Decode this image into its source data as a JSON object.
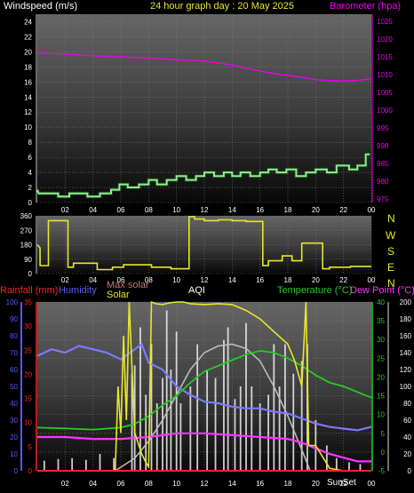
{
  "header": {
    "left_title": "Windspeed (m/s)",
    "center_title": "24 hour graph day : 20 May 2025",
    "right_title": "Barometer (hpa)"
  },
  "colors": {
    "background": "#000000",
    "windspeed": "#90ee90",
    "barometer": "#ee00ee",
    "wind_direction": "#e6e62e",
    "rainfall": "#ff2020",
    "humidity": "#5a5aff",
    "max_solar": "#c87878",
    "solar": "#e6e62e",
    "aqi": "#ffffff",
    "temperature": "#22cc22",
    "dew_point": "#ff33ff"
  },
  "compass": [
    "N",
    "W",
    "S",
    "E",
    "N"
  ],
  "chart_data": [
    {
      "type": "line",
      "id": "wind-baro",
      "x_ticks": [
        "02",
        "04",
        "06",
        "08",
        "10",
        "12",
        "14",
        "16",
        "18",
        "20",
        "22",
        "00"
      ],
      "left_axis": {
        "label": "Windspeed (m/s)",
        "ticks": [
          0,
          2,
          4,
          6,
          8,
          10,
          12,
          14,
          16,
          18,
          20,
          22,
          24
        ],
        "range": [
          0,
          25
        ]
      },
      "right_axis": {
        "label": "Barometer (hpa)",
        "ticks": [
          975,
          980,
          985,
          990,
          995,
          1000,
          1005,
          1010,
          1015,
          1020,
          1025
        ],
        "range": [
          974,
          1027
        ]
      },
      "grid": true,
      "series": [
        {
          "name": "Windspeed",
          "x": [
            0,
            0.1,
            0.8,
            1.5,
            1.5,
            2.3,
            2.3,
            2.9,
            2.9,
            3.6,
            3.6,
            4.5,
            4.5,
            5.3,
            5.3,
            5.9,
            5.9,
            6.5,
            6.5,
            7.3,
            7.3,
            8.0,
            8.0,
            8.6,
            8.6,
            9.3,
            9.3,
            10.0,
            10.0,
            10.7,
            10.7,
            11.4,
            11.4,
            12.0,
            12.0,
            12.7,
            12.7,
            13.4,
            13.4,
            14.0,
            14.0,
            14.6,
            14.6,
            15.3,
            15.3,
            16.0,
            16.0,
            16.6,
            16.6,
            17.2,
            17.2,
            17.9,
            17.9,
            18.6,
            18.6,
            19.3,
            19.3,
            20.0,
            20.0,
            20.8,
            20.8,
            21.5,
            21.5,
            22.4,
            22.4,
            23.0,
            23.0,
            23.6,
            23.6,
            23.9
          ],
          "y": [
            1.7,
            1.2,
            1.2,
            1.2,
            0.8,
            0.8,
            1.2,
            1.2,
            1.2,
            1.2,
            0.8,
            0.8,
            1.2,
            1.2,
            1.7,
            1.7,
            2.4,
            2.4,
            2.0,
            2.0,
            2.4,
            2.4,
            3.0,
            3.0,
            2.4,
            2.4,
            3.0,
            3.0,
            3.5,
            3.5,
            3.0,
            3.0,
            3.5,
            3.5,
            4.0,
            4.0,
            3.5,
            3.5,
            4.0,
            4.0,
            3.5,
            3.5,
            4.0,
            4.0,
            3.5,
            3.5,
            4.0,
            4.0,
            4.4,
            4.4,
            4.0,
            4.0,
            4.4,
            4.4,
            3.5,
            3.5,
            4.0,
            4.0,
            4.4,
            4.4,
            4.0,
            4.0,
            4.9,
            4.9,
            4.4,
            4.4,
            4.9,
            4.9,
            6.4,
            6.4
          ]
        },
        {
          "name": "Barometer",
          "x": [
            0,
            2,
            4,
            6,
            8,
            10,
            12,
            13,
            14,
            15,
            16,
            17,
            18,
            19,
            20,
            21,
            22,
            23,
            24
          ],
          "y": [
            1016,
            1015.8,
            1015.3,
            1015,
            1014.7,
            1014.2,
            1013.8,
            1013.3,
            1012.7,
            1011.8,
            1011,
            1010.3,
            1009.8,
            1009.2,
            1008.6,
            1008.3,
            1008.2,
            1008.4,
            1008.8
          ]
        }
      ]
    },
    {
      "type": "line",
      "id": "wind-direction",
      "x_ticks": [
        "02",
        "04",
        "06",
        "08",
        "10",
        "12",
        "14",
        "16",
        "18",
        "20",
        "22",
        "00"
      ],
      "left_axis": {
        "ticks": [
          0,
          90,
          180,
          270,
          360
        ],
        "range": [
          0,
          360
        ]
      },
      "series": [
        {
          "name": "Wind direction",
          "x": [
            0,
            0.2,
            0.2,
            0.8,
            0.8,
            2.2,
            2.2,
            2.6,
            2.6,
            4.3,
            4.3,
            5.4,
            5.4,
            6.2,
            6.2,
            6.6,
            6.6,
            8.2,
            8.2,
            9.6,
            9.6,
            10.9,
            10.9,
            11.3,
            11.3,
            12.0,
            12.0,
            13.0,
            13.0,
            14.0,
            14.0,
            15.0,
            15.0,
            16.2,
            16.2,
            16.6,
            16.6,
            16.8,
            16.8,
            17.6,
            17.6,
            18.3,
            18.3,
            19.0,
            19.0,
            19.3,
            19.3,
            20.5,
            20.5,
            21.0,
            21.0,
            22.5,
            22.5,
            24
          ],
          "y": [
            180,
            160,
            50,
            50,
            330,
            330,
            40,
            40,
            65,
            65,
            25,
            25,
            40,
            40,
            55,
            55,
            55,
            55,
            40,
            40,
            30,
            30,
            355,
            355,
            340,
            340,
            330,
            330,
            335,
            335,
            330,
            330,
            325,
            325,
            50,
            50,
            80,
            80,
            80,
            80,
            110,
            110,
            80,
            80,
            190,
            190,
            190,
            190,
            30,
            30,
            40,
            40,
            45,
            45
          ]
        }
      ]
    },
    {
      "type": "line",
      "id": "multi",
      "x_ticks": [
        "02",
        "04",
        "06",
        "08",
        "10",
        "12",
        "14",
        "16",
        "18",
        "20",
        "22",
        "00"
      ],
      "annotations": [
        "SunSet"
      ],
      "axes": {
        "rainfall": {
          "label": "Rainfall (mm)",
          "ticks": [
            0,
            5,
            10,
            15,
            20,
            25,
            30,
            35
          ],
          "range": [
            0,
            35
          ]
        },
        "humidity": {
          "label": "Humidity",
          "ticks": [
            0,
            10,
            20,
            30,
            40,
            50,
            60,
            70,
            80,
            90,
            100
          ],
          "range": [
            0,
            100
          ]
        },
        "temperature": {
          "label": "Temperature (°C)",
          "ticks": [
            -5,
            0,
            5,
            10,
            15,
            20,
            25,
            30,
            35,
            40
          ],
          "range": [
            -5,
            40
          ]
        },
        "solar": {
          "label": "Solar",
          "ticks": [
            0,
            20,
            40,
            60,
            80,
            100,
            120,
            140,
            160,
            180,
            200
          ],
          "range": [
            0,
            200
          ]
        }
      },
      "labels": {
        "max_solar": "Max solar",
        "solar": "Solar",
        "aqi": "AQI",
        "dew_point": "Dew Point (°C)"
      },
      "series": [
        {
          "name": "Humidity",
          "axis": "humidity",
          "x": [
            0,
            1,
            2,
            3,
            4,
            5,
            6,
            7,
            7.5,
            8,
            9,
            10,
            11,
            12,
            13,
            14,
            15,
            16,
            17,
            18,
            19,
            20,
            21,
            22,
            23,
            24
          ],
          "y": [
            68,
            72,
            70,
            74,
            72,
            70,
            66,
            72,
            75,
            64,
            60,
            50,
            45,
            41,
            40,
            38,
            37,
            37,
            35,
            34,
            31,
            28,
            26,
            25,
            24,
            26
          ]
        },
        {
          "name": "Temperature",
          "axis": "temperature",
          "x": [
            0,
            2,
            4,
            6,
            7,
            8,
            9,
            10,
            11,
            12,
            13,
            14,
            15,
            16,
            17,
            18,
            19,
            20,
            21,
            22,
            23,
            24
          ],
          "y": [
            6.5,
            6.3,
            6.0,
            6.5,
            7.5,
            9.5,
            12.5,
            15.0,
            18.5,
            21.5,
            23.0,
            24.5,
            26.0,
            27.0,
            26.5,
            25.0,
            23.0,
            20.5,
            18.5,
            17.5,
            16.0,
            14.5
          ]
        },
        {
          "name": "Dew Point",
          "axis": "temperature",
          "x": [
            0,
            2,
            4,
            6,
            8,
            10,
            12,
            14,
            16,
            18,
            19,
            20,
            21,
            22,
            23,
            24
          ],
          "y": [
            4.0,
            4.0,
            3.5,
            3.5,
            4.0,
            5.0,
            5.0,
            4.5,
            4.0,
            3.5,
            2.5,
            1.0,
            -0.5,
            -1.5,
            -2.5,
            -2.5
          ]
        },
        {
          "name": "Max solar",
          "axis": "solar",
          "x": [
            5.6,
            7,
            8,
            9,
            10,
            11,
            12,
            13,
            14,
            15,
            16,
            17,
            18,
            19,
            19.6
          ],
          "y": [
            0,
            15,
            35,
            60,
            90,
            120,
            140,
            148,
            150,
            145,
            130,
            100,
            65,
            25,
            0
          ]
        },
        {
          "name": "Solar",
          "axis": "solar",
          "x": [
            0,
            5.6,
            5.8,
            6.0,
            6.2,
            6.4,
            6.6,
            7.0,
            7.5,
            7.8,
            8.0,
            8.2,
            8.5,
            9.0,
            9.5,
            10,
            10.5,
            11,
            12,
            13,
            14,
            15,
            16,
            17,
            18,
            18.5,
            19,
            19.3,
            19.5,
            20,
            21,
            22,
            23,
            24
          ],
          "y": [
            0,
            0,
            100,
            45,
            160,
            60,
            200,
            45,
            20,
            10,
            5,
            200,
            198,
            197,
            199,
            200,
            200,
            198,
            197,
            198,
            197,
            190,
            180,
            165,
            150,
            130,
            100,
            200,
            30,
            30,
            3,
            0,
            0,
            0
          ]
        },
        {
          "name": "Rainfall",
          "axis": "rainfall",
          "x": [
            0,
            24
          ],
          "y": [
            0,
            0
          ]
        },
        {
          "name": "AQI",
          "axis": "solar",
          "spikes": [
            [
              0.5,
              12
            ],
            [
              1.5,
              14
            ],
            [
              2.5,
              15
            ],
            [
              3.5,
              13
            ],
            [
              4.5,
              20
            ],
            [
              5.5,
              15
            ],
            [
              6.8,
              115
            ],
            [
              7.0,
              125
            ],
            [
              7.4,
              170
            ],
            [
              7.8,
              90
            ],
            [
              8.2,
              150
            ],
            [
              8.6,
              80
            ],
            [
              9.0,
              110
            ],
            [
              9.3,
              190
            ],
            [
              9.6,
              120
            ],
            [
              10.0,
              165
            ],
            [
              10.3,
              80
            ],
            [
              11.0,
              100
            ],
            [
              11.5,
              150
            ],
            [
              12.2,
              120
            ],
            [
              12.8,
              110
            ],
            [
              13.4,
              155
            ],
            [
              13.7,
              170
            ],
            [
              14.2,
              85
            ],
            [
              14.6,
              100
            ],
            [
              15.0,
              175
            ],
            [
              15.4,
              100
            ],
            [
              16.0,
              80
            ],
            [
              16.6,
              90
            ],
            [
              17.0,
              150
            ],
            [
              17.4,
              100
            ],
            [
              17.8,
              150
            ],
            [
              18.4,
              115
            ],
            [
              19.0,
              130
            ],
            [
              19.4,
              150
            ],
            [
              20.0,
              60
            ],
            [
              20.8,
              30
            ],
            [
              21.5,
              15
            ],
            [
              22.4,
              10
            ],
            [
              23.2,
              8
            ]
          ]
        }
      ]
    }
  ]
}
